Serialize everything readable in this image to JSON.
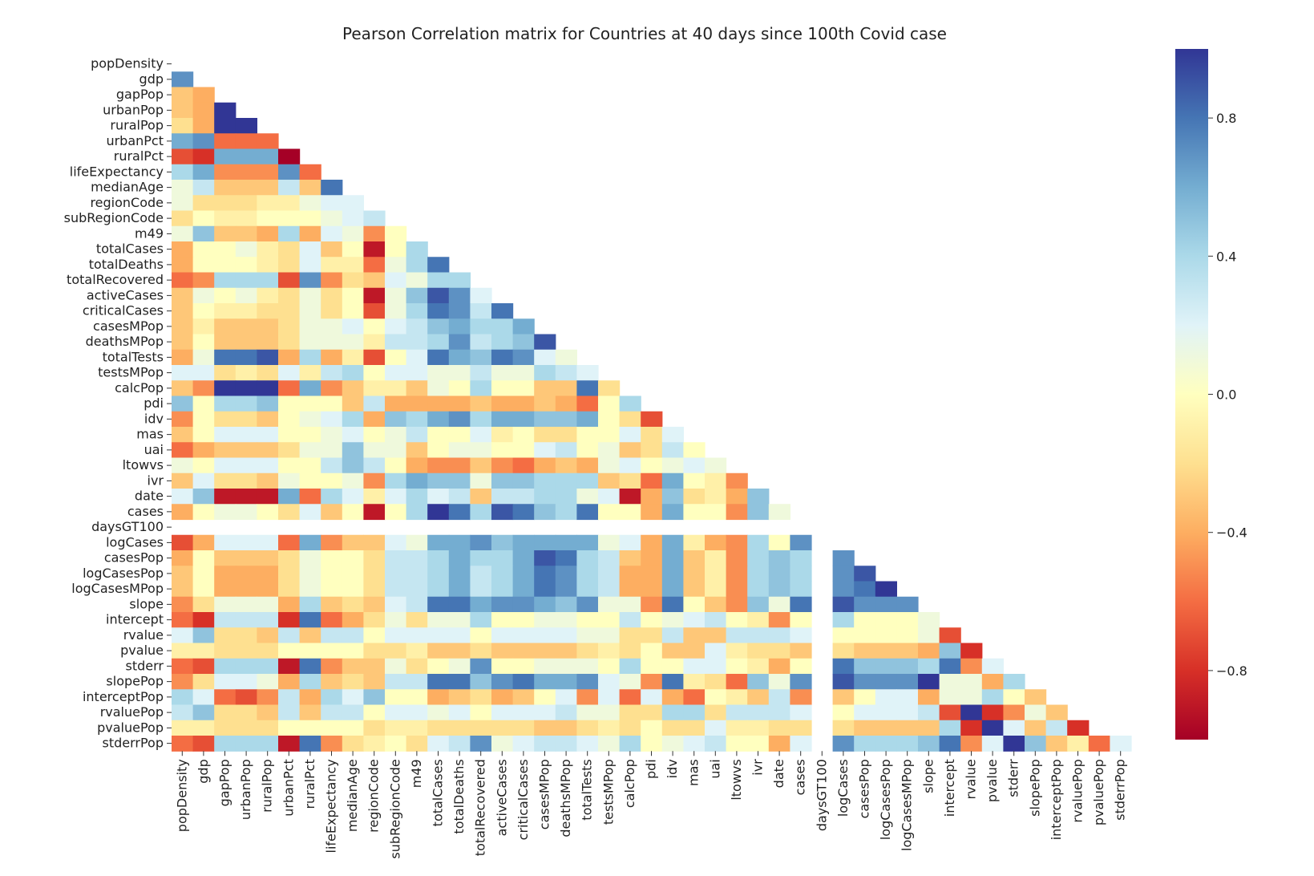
{
  "chart_data": {
    "type": "heatmap",
    "title": "Pearson Correlation matrix for Countries at 40 days since 100th Covid case",
    "xlabel": "",
    "ylabel": "",
    "mask": "upper-triangle-including-diagonal",
    "labels": [
      "popDensity",
      "gdp",
      "gapPop",
      "urbanPop",
      "ruralPop",
      "urbanPct",
      "ruralPct",
      "lifeExpectancy",
      "medianAge",
      "regionCode",
      "subRegionCode",
      "m49",
      "totalCases",
      "totalDeaths",
      "totalRecovered",
      "activeCases",
      "criticalCases",
      "casesMPop",
      "deathsMPop",
      "totalTests",
      "testsMPop",
      "calcPop",
      "pdi",
      "idv",
      "mas",
      "uai",
      "ltowvs",
      "ivr",
      "date",
      "cases",
      "daysGT100",
      "logCases",
      "casesPop",
      "logCasesPop",
      "logCasesMPop",
      "slope",
      "intercept",
      "rvalue",
      "pvalue",
      "stderr",
      "slopePop",
      "interceptPop",
      "rvaluePop",
      "pvaluePop",
      "stderrPop"
    ],
    "colorscale": "RdYlBu",
    "vmin": -1,
    "vmax": 1,
    "colorbar_ticks": [
      "0.8",
      "0.4",
      "0.0",
      "−0.4",
      "−0.8"
    ],
    "colorbar_tick_values": [
      0.8,
      0.4,
      0.0,
      -0.4,
      -0.8
    ],
    "empty_labels": [
      "daysGT100"
    ],
    "matrix_rows": [
      [],
      [
        0.7
      ],
      [
        -0.3,
        -0.4
      ],
      [
        -0.3,
        -0.4,
        1.0
      ],
      [
        -0.2,
        -0.4,
        1.0,
        1.0
      ],
      [
        0.6,
        0.7,
        -0.6,
        -0.6,
        -0.6
      ],
      [
        -0.7,
        -0.8,
        0.6,
        0.6,
        0.6,
        -1.0
      ],
      [
        0.4,
        0.6,
        -0.5,
        -0.5,
        -0.5,
        0.7,
        -0.6
      ],
      [
        0.1,
        0.3,
        -0.3,
        -0.3,
        -0.3,
        0.3,
        -0.3,
        0.8
      ],
      [
        0.1,
        -0.2,
        -0.2,
        -0.2,
        -0.1,
        -0.1,
        0.1,
        0.2,
        0.2
      ],
      [
        -0.2,
        0.0,
        -0.1,
        -0.1,
        0.0,
        0.0,
        0.0,
        0.1,
        0.2,
        0.3
      ],
      [
        0.1,
        0.5,
        -0.3,
        -0.3,
        -0.4,
        0.4,
        -0.4,
        0.2,
        0.1,
        -0.5,
        0.0
      ],
      [
        -0.4,
        0.0,
        0.0,
        0.1,
        -0.1,
        -0.2,
        0.2,
        -0.3,
        0.0,
        -0.9,
        0.0,
        0.4
      ],
      [
        -0.4,
        0.0,
        0.0,
        0.0,
        -0.1,
        -0.2,
        0.2,
        -0.1,
        -0.1,
        -0.6,
        0.1,
        0.4,
        0.8
      ],
      [
        -0.6,
        -0.5,
        0.4,
        0.4,
        0.4,
        -0.7,
        0.7,
        -0.5,
        -0.2,
        -0.3,
        0.2,
        0.1,
        0.4,
        0.4
      ],
      [
        -0.3,
        0.1,
        0.0,
        0.1,
        -0.1,
        -0.2,
        0.1,
        -0.2,
        0.0,
        -0.9,
        0.1,
        0.5,
        0.9,
        0.7,
        0.2
      ],
      [
        -0.3,
        0.0,
        -0.1,
        -0.1,
        -0.2,
        -0.2,
        0.1,
        -0.2,
        0.0,
        -0.7,
        0.1,
        0.4,
        0.8,
        0.7,
        0.3,
        0.8
      ],
      [
        -0.3,
        -0.1,
        -0.3,
        -0.3,
        -0.3,
        -0.2,
        0.1,
        0.1,
        0.2,
        0.0,
        0.2,
        0.3,
        0.5,
        0.6,
        0.4,
        0.4,
        0.6
      ],
      [
        -0.3,
        0.0,
        -0.3,
        -0.3,
        -0.3,
        -0.2,
        0.1,
        0.1,
        0.1,
        -0.1,
        0.3,
        0.3,
        0.4,
        0.7,
        0.3,
        0.4,
        0.5,
        0.9
      ],
      [
        -0.4,
        0.1,
        0.8,
        0.8,
        0.9,
        -0.4,
        0.4,
        -0.4,
        -0.1,
        -0.7,
        0.0,
        0.2,
        0.8,
        0.6,
        0.5,
        0.8,
        0.7,
        0.2,
        0.1
      ],
      [
        0.2,
        0.2,
        -0.2,
        -0.1,
        -0.2,
        0.2,
        -0.1,
        0.3,
        0.4,
        0.0,
        0.2,
        0.2,
        0.1,
        0.1,
        0.3,
        0.1,
        0.1,
        0.4,
        0.3,
        0.2
      ],
      [
        -0.3,
        -0.5,
        1.0,
        1.0,
        1.0,
        -0.6,
        0.6,
        -0.5,
        -0.3,
        -0.1,
        -0.1,
        -0.3,
        0.1,
        0.0,
        0.4,
        0.0,
        0.0,
        -0.3,
        -0.3,
        0.8,
        -0.2
      ],
      [
        0.5,
        0.0,
        0.4,
        0.4,
        0.5,
        0.0,
        0.0,
        0.0,
        -0.3,
        0.3,
        -0.4,
        -0.4,
        -0.4,
        -0.4,
        -0.3,
        -0.4,
        -0.4,
        -0.3,
        -0.4,
        -0.6,
        0.0,
        0.4
      ],
      [
        -0.5,
        0.0,
        -0.2,
        -0.2,
        -0.3,
        0.0,
        0.1,
        0.2,
        0.4,
        -0.4,
        0.5,
        0.4,
        0.6,
        0.7,
        0.4,
        0.6,
        0.6,
        0.5,
        0.5,
        0.6,
        0.0,
        -0.2,
        -0.7
      ],
      [
        -0.3,
        0.0,
        0.2,
        0.2,
        0.2,
        0.0,
        0.0,
        0.1,
        0.2,
        0.0,
        0.1,
        0.3,
        0.0,
        0.0,
        0.2,
        -0.1,
        0.0,
        -0.2,
        -0.2,
        0.0,
        0.0,
        0.2,
        -0.2,
        0.2
      ],
      [
        -0.6,
        -0.4,
        -0.3,
        -0.3,
        -0.3,
        -0.2,
        0.1,
        0.1,
        0.5,
        0.1,
        0.1,
        -0.3,
        0.0,
        0.1,
        0.1,
        0.0,
        0.0,
        0.2,
        0.3,
        0.0,
        0.1,
        -0.3,
        -0.2,
        0.3,
        0.0
      ],
      [
        0.1,
        0.0,
        0.2,
        0.2,
        0.2,
        0.0,
        0.0,
        0.3,
        0.5,
        0.3,
        0.0,
        -0.4,
        -0.5,
        -0.5,
        -0.3,
        -0.5,
        -0.6,
        -0.4,
        -0.3,
        -0.4,
        0.1,
        0.2,
        0.0,
        0.1,
        0.2,
        0.1
      ],
      [
        -0.3,
        0.2,
        -0.2,
        -0.2,
        -0.3,
        0.1,
        0.0,
        0.0,
        0.1,
        -0.5,
        0.4,
        0.6,
        0.5,
        0.5,
        0.1,
        0.5,
        0.5,
        0.4,
        0.4,
        0.4,
        -0.3,
        -0.2,
        -0.6,
        0.6,
        0.0,
        -0.1,
        -0.5
      ],
      [
        0.2,
        0.5,
        -0.9,
        -0.9,
        -0.9,
        0.6,
        -0.6,
        0.4,
        0.2,
        -0.1,
        0.2,
        0.4,
        0.2,
        0.3,
        -0.3,
        0.3,
        0.3,
        0.4,
        0.4,
        0.1,
        0.2,
        -0.9,
        -0.4,
        0.5,
        -0.2,
        -0.1,
        -0.4,
        0.5
      ],
      [
        -0.4,
        0.0,
        0.1,
        0.1,
        0.0,
        -0.2,
        0.2,
        -0.3,
        0.0,
        -0.9,
        0.0,
        0.4,
        1.0,
        0.8,
        0.4,
        0.9,
        0.8,
        0.5,
        0.4,
        0.8,
        0.0,
        0.0,
        -0.4,
        0.6,
        0.0,
        0.0,
        -0.5,
        0.5,
        0.1
      ],
      [],
      [
        -0.7,
        -0.4,
        0.2,
        0.2,
        0.2,
        -0.6,
        0.6,
        -0.5,
        -0.3,
        -0.3,
        0.2,
        0.1,
        0.6,
        0.6,
        0.7,
        0.5,
        0.6,
        0.6,
        0.6,
        0.6,
        0.1,
        0.2,
        -0.4,
        0.6,
        -0.1,
        -0.4,
        -0.5,
        0.4,
        0.0,
        0.7,
        null
      ],
      [
        -0.4,
        0.0,
        -0.3,
        -0.3,
        -0.3,
        -0.2,
        0.1,
        0.0,
        0.0,
        -0.2,
        0.3,
        0.3,
        0.4,
        0.6,
        0.4,
        0.4,
        0.6,
        0.9,
        0.8,
        0.4,
        0.3,
        -0.3,
        -0.4,
        0.6,
        -0.3,
        -0.1,
        -0.5,
        0.4,
        0.5,
        0.4,
        null,
        0.7
      ],
      [
        -0.3,
        0.0,
        -0.4,
        -0.4,
        -0.4,
        -0.2,
        0.1,
        0.0,
        0.0,
        -0.2,
        0.3,
        0.3,
        0.4,
        0.6,
        0.3,
        0.4,
        0.6,
        0.8,
        0.7,
        0.4,
        0.3,
        -0.4,
        -0.4,
        0.6,
        -0.3,
        -0.1,
        -0.5,
        0.4,
        0.5,
        0.4,
        null,
        0.7,
        0.9
      ],
      [
        -0.3,
        0.0,
        -0.4,
        -0.4,
        -0.4,
        -0.2,
        0.1,
        0.0,
        0.0,
        -0.2,
        0.3,
        0.3,
        0.4,
        0.6,
        0.3,
        0.4,
        0.6,
        0.8,
        0.7,
        0.4,
        0.3,
        -0.4,
        -0.4,
        0.6,
        -0.3,
        -0.1,
        -0.5,
        0.4,
        0.5,
        0.4,
        null,
        0.7,
        0.8,
        1.0
      ],
      [
        -0.5,
        -0.2,
        0.1,
        0.1,
        0.1,
        -0.4,
        0.4,
        -0.3,
        -0.2,
        -0.3,
        0.2,
        0.3,
        0.8,
        0.8,
        0.6,
        0.7,
        0.7,
        0.6,
        0.5,
        0.7,
        0.1,
        0.1,
        -0.5,
        0.8,
        0.0,
        -0.3,
        -0.5,
        0.5,
        0.1,
        0.8,
        null,
        0.9,
        0.7,
        0.7,
        0.7
      ],
      [
        -0.6,
        -0.8,
        0.3,
        0.3,
        0.3,
        -0.8,
        0.8,
        -0.6,
        -0.4,
        -0.2,
        0.1,
        -0.2,
        0.1,
        0.1,
        0.4,
        0.0,
        0.0,
        0.1,
        0.1,
        0.0,
        0.0,
        0.3,
        0.0,
        0.1,
        0.2,
        0.3,
        0.0,
        -0.1,
        -0.5,
        0.0,
        null,
        0.4,
        0.0,
        0.0,
        0.0,
        0.1
      ],
      [
        0.2,
        0.5,
        -0.2,
        -0.2,
        -0.3,
        0.3,
        -0.3,
        0.3,
        0.3,
        0.0,
        0.2,
        0.2,
        0.2,
        0.2,
        0.0,
        0.2,
        0.2,
        0.2,
        0.2,
        0.1,
        0.1,
        -0.2,
        -0.2,
        0.3,
        -0.3,
        -0.3,
        0.3,
        0.3,
        0.3,
        0.2,
        null,
        0.0,
        0.0,
        0.0,
        0.0,
        0.1,
        -0.7
      ],
      [
        -0.1,
        -0.1,
        -0.2,
        -0.2,
        -0.2,
        0.0,
        0.0,
        0.0,
        0.0,
        -0.2,
        -0.2,
        -0.1,
        -0.3,
        -0.3,
        -0.2,
        -0.3,
        -0.3,
        -0.3,
        -0.3,
        -0.2,
        -0.1,
        -0.2,
        0.0,
        -0.3,
        -0.3,
        0.2,
        -0.1,
        -0.2,
        -0.2,
        -0.3,
        null,
        -0.2,
        -0.3,
        -0.3,
        -0.3,
        -0.4,
        0.5,
        -0.8
      ],
      [
        -0.6,
        -0.7,
        0.4,
        0.4,
        0.4,
        -0.9,
        0.8,
        -0.5,
        -0.3,
        -0.3,
        0.1,
        -0.2,
        0.0,
        0.1,
        0.7,
        0.0,
        0.0,
        0.1,
        0.1,
        0.1,
        0.0,
        0.4,
        0.0,
        0.0,
        0.2,
        0.2,
        0.0,
        -0.1,
        -0.4,
        0.0,
        null,
        0.8,
        0.5,
        0.5,
        0.5,
        0.4,
        0.8,
        -0.5,
        0.2
      ],
      [
        -0.5,
        -0.2,
        0.2,
        0.2,
        0.1,
        -0.4,
        0.4,
        -0.3,
        -0.2,
        -0.3,
        0.3,
        0.3,
        0.8,
        0.8,
        0.5,
        0.7,
        0.8,
        0.6,
        0.6,
        0.7,
        0.2,
        0.1,
        -0.5,
        0.8,
        -0.1,
        -0.2,
        -0.6,
        0.5,
        0.1,
        0.7,
        null,
        0.9,
        0.7,
        0.7,
        0.7,
        1.0,
        0.1,
        0.1,
        -0.4,
        0.4
      ],
      [
        0.4,
        0.2,
        -0.6,
        -0.7,
        -0.5,
        0.3,
        -0.4,
        0.4,
        0.2,
        0.5,
        0.0,
        0.0,
        -0.4,
        -0.3,
        -0.2,
        -0.4,
        -0.3,
        0.0,
        0.2,
        -0.5,
        0.2,
        -0.6,
        0.2,
        -0.4,
        -0.6,
        0.0,
        -0.1,
        -0.3,
        0.3,
        -0.5,
        null,
        -0.3,
        0.0,
        0.2,
        0.2,
        -0.4,
        0.1,
        0.1,
        0.4,
        0.0,
        -0.3
      ],
      [
        0.3,
        0.5,
        -0.2,
        -0.2,
        -0.3,
        0.3,
        -0.3,
        0.3,
        0.3,
        0.0,
        0.2,
        0.2,
        0.1,
        0.2,
        0.0,
        0.2,
        0.2,
        0.2,
        0.3,
        0.1,
        0.1,
        -0.2,
        -0.2,
        0.4,
        0.4,
        -0.2,
        0.3,
        0.3,
        0.3,
        0.2,
        null,
        0.0,
        0.2,
        0.2,
        0.2,
        0.3,
        -0.7,
        1.0,
        -0.8,
        -0.5,
        0.1,
        -0.3
      ],
      [
        -0.1,
        -0.1,
        -0.2,
        -0.2,
        -0.2,
        0.0,
        0.0,
        0.0,
        0.0,
        -0.2,
        -0.1,
        -0.1,
        -0.2,
        -0.2,
        -0.2,
        -0.2,
        -0.2,
        -0.3,
        -0.3,
        -0.2,
        -0.1,
        -0.2,
        0.0,
        -0.2,
        -0.2,
        0.2,
        -0.1,
        -0.1,
        -0.2,
        -0.2,
        null,
        -0.2,
        -0.3,
        -0.3,
        -0.3,
        -0.3,
        0.4,
        -0.8,
        1.0,
        0.2,
        -0.3,
        0.3,
        -0.8
      ],
      [
        -0.6,
        -0.7,
        0.4,
        0.4,
        0.4,
        -0.9,
        0.8,
        -0.5,
        -0.2,
        -0.1,
        0.0,
        -0.2,
        0.2,
        0.3,
        0.7,
        0.1,
        0.2,
        0.3,
        0.3,
        0.2,
        0.1,
        0.4,
        0.0,
        0.1,
        0.2,
        0.3,
        0.0,
        0.0,
        -0.4,
        0.2,
        null,
        0.7,
        0.4,
        0.4,
        0.4,
        0.5,
        0.8,
        -0.5,
        0.2,
        1.0,
        0.5,
        -0.3,
        -0.1,
        -0.6,
        0.2
      ]
    ]
  }
}
